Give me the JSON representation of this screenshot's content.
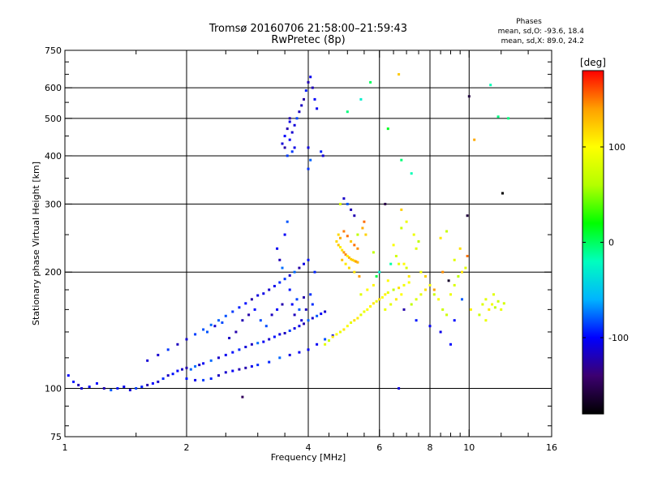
{
  "header": {
    "title_line1": "Tromsø 20160706 21:58:00–21:59:43",
    "title_line2": "RwPretec (8p)"
  },
  "stats": {
    "heading": "Phases",
    "line_o": "mean, sd,O: -93.6, 18.4",
    "line_x": "mean, sd,X:  89.0, 24.2"
  },
  "chart_data": {
    "type": "scatter",
    "xlabel": "Frequency [MHz]",
    "ylabel": "Stationary phase Virtual Height [km]",
    "x_scale": "log",
    "y_scale": "log",
    "xlim": [
      1,
      16
    ],
    "ylim": [
      75,
      750
    ],
    "x_ticks": [
      1,
      2,
      4,
      6,
      8,
      10,
      16
    ],
    "x_ticklabels": [
      "1",
      "2",
      "4",
      "6",
      "8",
      "10",
      "16"
    ],
    "x_minor_ticks": [
      1.5,
      2.5,
      3,
      3.5,
      4.5,
      5,
      5.5,
      6.5,
      7,
      7.5,
      8.5,
      9,
      9.5,
      12,
      14
    ],
    "y_ticks": [
      75,
      100,
      200,
      300,
      400,
      500,
      600,
      750
    ],
    "y_ticklabels": [
      "75",
      "100",
      "200",
      "300",
      "400",
      "500",
      "600",
      "750"
    ],
    "y_minor_ticks": [
      80,
      90,
      120,
      140,
      160,
      180,
      250,
      350,
      450,
      550,
      650,
      700
    ],
    "x_gridlines": [
      2,
      4,
      6,
      8,
      10
    ],
    "y_gridlines": [
      100,
      200,
      300,
      400,
      500,
      600
    ],
    "grid": true,
    "colorbar": {
      "label": "[deg]",
      "range": [
        -180,
        180
      ],
      "ticks": [
        100,
        0,
        -100
      ],
      "ticklabels": [
        "100",
        "0",
        "-100"
      ],
      "colors": [
        "#000000",
        "#3c0070",
        "#0000ff",
        "#00b4ff",
        "#00ffbe",
        "#00ff00",
        "#b4ff00",
        "#ffff00",
        "#ffa000",
        "#ff0000"
      ]
    },
    "series": [
      {
        "kind": "O-mode trace (phase ≈ -100°)",
        "color_value": -100,
        "points": [
          [
            1.02,
            108
          ],
          [
            1.05,
            104
          ],
          [
            1.08,
            102
          ],
          [
            1.1,
            100
          ],
          [
            1.15,
            101
          ],
          [
            1.2,
            103
          ],
          [
            1.25,
            100
          ],
          [
            1.3,
            99
          ],
          [
            1.35,
            100
          ],
          [
            1.4,
            101
          ],
          [
            1.45,
            99
          ],
          [
            1.5,
            100
          ],
          [
            1.55,
            101
          ],
          [
            1.6,
            102
          ],
          [
            1.65,
            103
          ],
          [
            1.7,
            104
          ],
          [
            1.75,
            106
          ],
          [
            1.8,
            108
          ],
          [
            1.85,
            109
          ],
          [
            1.9,
            111
          ],
          [
            1.95,
            112
          ],
          [
            2.0,
            113
          ],
          [
            2.05,
            112
          ],
          [
            2.1,
            114
          ],
          [
            2.15,
            115
          ],
          [
            2.2,
            116
          ],
          [
            2.3,
            118
          ],
          [
            2.4,
            120
          ],
          [
            2.5,
            122
          ],
          [
            2.6,
            124
          ],
          [
            2.7,
            126
          ],
          [
            2.8,
            128
          ],
          [
            2.9,
            130
          ],
          [
            3.0,
            131
          ],
          [
            3.1,
            132
          ],
          [
            3.2,
            134
          ],
          [
            3.3,
            136
          ],
          [
            3.4,
            138
          ],
          [
            3.5,
            139
          ],
          [
            3.6,
            141
          ],
          [
            3.7,
            143
          ],
          [
            3.8,
            145
          ],
          [
            3.9,
            147
          ],
          [
            4.0,
            150
          ],
          [
            4.1,
            152
          ],
          [
            4.2,
            154
          ],
          [
            4.3,
            156
          ],
          [
            4.4,
            158
          ],
          [
            2.0,
            106
          ],
          [
            2.1,
            105
          ],
          [
            2.2,
            105
          ],
          [
            2.3,
            106
          ],
          [
            2.4,
            108
          ],
          [
            2.5,
            110
          ],
          [
            2.6,
            111
          ],
          [
            2.7,
            112
          ],
          [
            2.8,
            113
          ],
          [
            2.9,
            114
          ],
          [
            3.0,
            115
          ],
          [
            3.2,
            117
          ],
          [
            3.4,
            120
          ],
          [
            3.6,
            122
          ],
          [
            3.8,
            124
          ],
          [
            4.0,
            126
          ],
          [
            4.2,
            130
          ],
          [
            4.4,
            134
          ],
          [
            4.6,
            137
          ],
          [
            4.8,
            140
          ],
          [
            1.6,
            118
          ],
          [
            1.7,
            122
          ],
          [
            1.8,
            126
          ],
          [
            1.9,
            130
          ],
          [
            2.0,
            134
          ],
          [
            2.1,
            138
          ],
          [
            2.2,
            142
          ],
          [
            2.3,
            146
          ],
          [
            2.4,
            150
          ],
          [
            2.5,
            154
          ],
          [
            2.6,
            158
          ],
          [
            2.7,
            162
          ],
          [
            2.8,
            166
          ],
          [
            2.9,
            170
          ],
          [
            3.0,
            174
          ],
          [
            3.1,
            176
          ],
          [
            3.2,
            180
          ],
          [
            3.3,
            184
          ],
          [
            3.4,
            188
          ],
          [
            3.5,
            192
          ],
          [
            3.6,
            196
          ],
          [
            3.7,
            200
          ],
          [
            3.8,
            205
          ],
          [
            3.9,
            210
          ],
          [
            4.0,
            215
          ],
          [
            3.35,
            230
          ],
          [
            3.4,
            215
          ],
          [
            3.45,
            205
          ],
          [
            3.5,
            250
          ],
          [
            3.55,
            270
          ],
          [
            3.6,
            180
          ],
          [
            3.65,
            165
          ],
          [
            3.7,
            155
          ],
          [
            3.75,
            170
          ],
          [
            3.8,
            160
          ],
          [
            3.85,
            150
          ],
          [
            3.9,
            172
          ],
          [
            3.95,
            160
          ],
          [
            4.05,
            175
          ],
          [
            4.1,
            165
          ],
          [
            4.15,
            200
          ],
          [
            2.25,
            140
          ],
          [
            2.35,
            145
          ],
          [
            2.45,
            148
          ],
          [
            2.55,
            135
          ],
          [
            2.65,
            140
          ],
          [
            2.75,
            150
          ],
          [
            2.85,
            155
          ],
          [
            2.95,
            160
          ],
          [
            3.05,
            150
          ],
          [
            3.15,
            145
          ],
          [
            3.25,
            155
          ],
          [
            3.35,
            160
          ],
          [
            3.45,
            165
          ],
          [
            3.45,
            430
          ],
          [
            3.5,
            450
          ],
          [
            3.55,
            470
          ],
          [
            3.6,
            490
          ],
          [
            3.65,
            460
          ],
          [
            3.7,
            480
          ],
          [
            3.75,
            500
          ],
          [
            3.8,
            520
          ],
          [
            3.85,
            540
          ],
          [
            3.9,
            560
          ],
          [
            3.95,
            590
          ],
          [
            4.0,
            620
          ],
          [
            4.05,
            640
          ],
          [
            4.1,
            600
          ],
          [
            4.15,
            560
          ],
          [
            4.2,
            530
          ],
          [
            3.5,
            420
          ],
          [
            3.55,
            400
          ],
          [
            3.6,
            440
          ],
          [
            3.65,
            410
          ],
          [
            4.0,
            420
          ],
          [
            4.05,
            390
          ],
          [
            4.0,
            370
          ],
          [
            4.3,
            410
          ],
          [
            4.35,
            400
          ],
          [
            3.7,
            420
          ],
          [
            3.6,
            500
          ],
          [
            5.0,
            300
          ],
          [
            5.1,
            290
          ],
          [
            5.2,
            280
          ],
          [
            4.9,
            310
          ],
          [
            6.7,
            100
          ],
          [
            6.9,
            160
          ],
          [
            7.4,
            150
          ],
          [
            8.0,
            145
          ],
          [
            8.5,
            140
          ],
          [
            9.2,
            150
          ],
          [
            9.6,
            170
          ],
          [
            9.0,
            130
          ]
        ]
      },
      {
        "kind": "X-mode trace (phase ≈ +90°)",
        "color_value": 89,
        "points": [
          [
            4.4,
            130
          ],
          [
            4.5,
            133
          ],
          [
            4.6,
            136
          ],
          [
            4.7,
            138
          ],
          [
            4.8,
            140
          ],
          [
            4.9,
            142
          ],
          [
            5.0,
            145
          ],
          [
            5.1,
            148
          ],
          [
            5.2,
            150
          ],
          [
            5.3,
            152
          ],
          [
            5.4,
            155
          ],
          [
            5.5,
            158
          ],
          [
            5.6,
            160
          ],
          [
            5.7,
            163
          ],
          [
            5.8,
            166
          ],
          [
            5.9,
            168
          ],
          [
            6.0,
            170
          ],
          [
            6.1,
            172
          ],
          [
            6.2,
            175
          ],
          [
            6.3,
            177
          ],
          [
            6.5,
            180
          ],
          [
            6.7,
            182
          ],
          [
            6.9,
            185
          ],
          [
            7.1,
            188
          ],
          [
            5.4,
            175
          ],
          [
            5.6,
            180
          ],
          [
            5.8,
            185
          ],
          [
            6.2,
            160
          ],
          [
            6.4,
            165
          ],
          [
            6.6,
            170
          ],
          [
            6.8,
            175
          ],
          [
            7.2,
            165
          ],
          [
            7.4,
            170
          ],
          [
            7.6,
            175
          ],
          [
            7.8,
            180
          ],
          [
            8.0,
            185
          ],
          [
            8.2,
            175
          ],
          [
            8.4,
            170
          ],
          [
            8.6,
            160
          ],
          [
            8.8,
            155
          ],
          [
            9.0,
            175
          ],
          [
            9.2,
            185
          ],
          [
            9.4,
            195
          ],
          [
            9.6,
            200
          ],
          [
            7.3,
            250
          ],
          [
            7.5,
            240
          ],
          [
            7.4,
            230
          ],
          [
            6.8,
            260
          ],
          [
            6.5,
            235
          ],
          [
            6.6,
            220
          ],
          [
            6.9,
            210
          ],
          [
            7.0,
            205
          ],
          [
            7.1,
            195
          ],
          [
            7.6,
            200
          ],
          [
            9.8,
            205
          ],
          [
            10.1,
            160
          ],
          [
            10.6,
            155
          ],
          [
            10.8,
            165
          ],
          [
            11.0,
            170
          ],
          [
            11.2,
            160
          ],
          [
            11.4,
            165
          ],
          [
            11.6,
            162
          ],
          [
            11.8,
            168
          ],
          [
            12.0,
            160
          ],
          [
            12.2,
            166
          ],
          [
            11.5,
            175
          ],
          [
            11.0,
            150
          ],
          [
            4.8,
            300
          ],
          [
            5.3,
            250
          ],
          [
            5.8,
            225
          ],
          [
            6.3,
            190
          ],
          [
            6.7,
            210
          ],
          [
            7.0,
            270
          ],
          [
            8.5,
            245
          ],
          [
            8.8,
            255
          ],
          [
            9.2,
            215
          ]
        ]
      },
      {
        "kind": "Sporadic returns (phase ≈ +130°)",
        "color_value": 130,
        "points": [
          [
            4.7,
            240
          ],
          [
            4.75,
            235
          ],
          [
            4.8,
            232
          ],
          [
            4.85,
            228
          ],
          [
            4.9,
            225
          ],
          [
            4.95,
            222
          ],
          [
            5.0,
            220
          ],
          [
            5.05,
            218
          ],
          [
            5.1,
            216
          ],
          [
            5.15,
            215
          ],
          [
            5.2,
            214
          ],
          [
            5.25,
            213
          ],
          [
            5.3,
            212
          ],
          [
            4.75,
            250
          ],
          [
            4.8,
            245
          ],
          [
            4.9,
            255
          ],
          [
            5.0,
            248
          ],
          [
            5.1,
            240
          ],
          [
            5.2,
            235
          ],
          [
            5.3,
            230
          ],
          [
            4.85,
            215
          ],
          [
            4.95,
            210
          ],
          [
            5.05,
            205
          ],
          [
            5.2,
            200
          ],
          [
            5.35,
            195
          ],
          [
            5.45,
            260
          ],
          [
            5.5,
            270
          ],
          [
            5.55,
            250
          ],
          [
            6.7,
            650
          ],
          [
            6.8,
            290
          ],
          [
            9.5,
            230
          ],
          [
            9.9,
            220
          ],
          [
            10.3,
            440
          ],
          [
            8.6,
            200
          ],
          [
            8.2,
            180
          ],
          [
            7.8,
            195
          ]
        ]
      },
      {
        "kind": "Isolated returns (phase ≈ -10°)",
        "color_value": -10,
        "points": [
          [
            5.0,
            520
          ],
          [
            5.4,
            560
          ],
          [
            5.7,
            620
          ],
          [
            6.3,
            470
          ],
          [
            6.8,
            390
          ],
          [
            7.2,
            360
          ],
          [
            11.3,
            610
          ],
          [
            11.8,
            505
          ],
          [
            12.5,
            500
          ],
          [
            6.0,
            200
          ],
          [
            6.4,
            210
          ],
          [
            5.9,
            195
          ]
        ]
      },
      {
        "kind": "Isolated returns (phase ≈ -160°)",
        "color_value": -160,
        "points": [
          [
            2.75,
            95
          ],
          [
            9.9,
            280
          ],
          [
            10.0,
            570
          ],
          [
            6.2,
            300
          ],
          [
            8.9,
            190
          ],
          [
            12.1,
            320
          ]
        ]
      }
    ]
  }
}
